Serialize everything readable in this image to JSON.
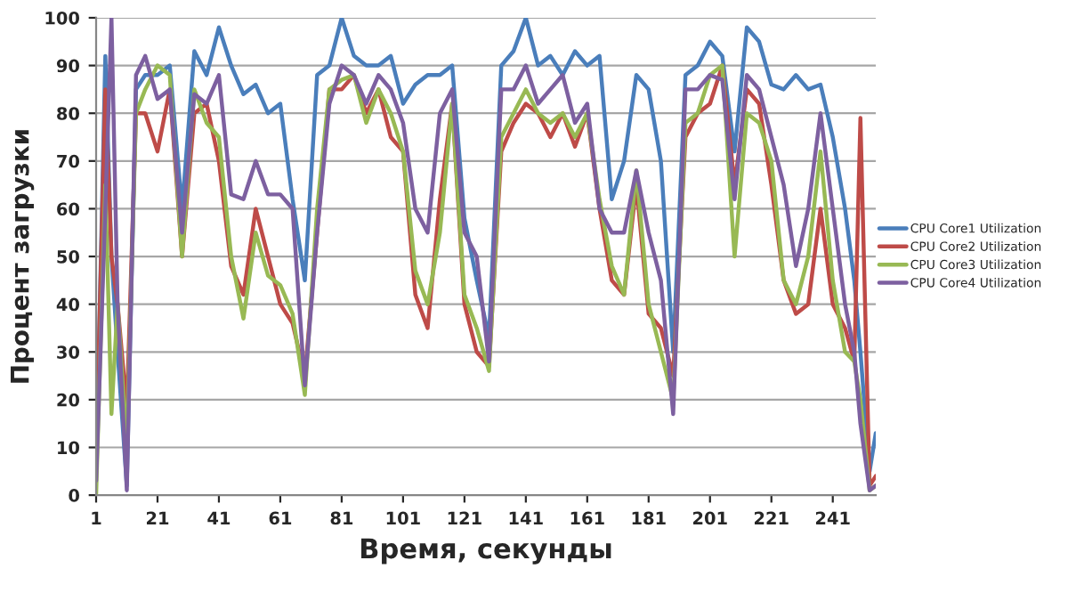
{
  "chart_data": {
    "type": "line",
    "xlabel": "Время, секунды",
    "ylabel": "Процент загрузки",
    "x": [
      1,
      4,
      6,
      8,
      11,
      14,
      17,
      21,
      25,
      29,
      33,
      37,
      41,
      45,
      49,
      53,
      57,
      61,
      65,
      69,
      73,
      77,
      81,
      85,
      89,
      93,
      97,
      101,
      105,
      109,
      113,
      117,
      121,
      125,
      129,
      133,
      137,
      141,
      145,
      149,
      153,
      157,
      161,
      165,
      169,
      173,
      177,
      181,
      185,
      189,
      193,
      197,
      201,
      205,
      209,
      213,
      217,
      221,
      225,
      229,
      233,
      237,
      241,
      245,
      248,
      250,
      253,
      255
    ],
    "series": [
      {
        "name": "CPU Core1 Utilization",
        "color": "#4a7ebb",
        "values": [
          5,
          92,
          50,
          30,
          2,
          85,
          88,
          88,
          90,
          60,
          93,
          88,
          98,
          90,
          84,
          86,
          80,
          82,
          62,
          45,
          88,
          90,
          100,
          92,
          90,
          90,
          92,
          82,
          86,
          88,
          88,
          90,
          58,
          45,
          33,
          90,
          93,
          100,
          90,
          92,
          88,
          93,
          90,
          92,
          62,
          70,
          88,
          85,
          70,
          30,
          88,
          90,
          95,
          92,
          72,
          98,
          95,
          86,
          85,
          88,
          85,
          86,
          75,
          60,
          45,
          30,
          5,
          13
        ]
      },
      {
        "name": "CPU Core2 Utilization",
        "color": "#be4b48",
        "values": [
          8,
          85,
          50,
          40,
          18,
          80,
          80,
          72,
          85,
          50,
          80,
          82,
          70,
          48,
          42,
          60,
          50,
          40,
          36,
          25,
          55,
          85,
          85,
          88,
          80,
          85,
          75,
          72,
          42,
          35,
          62,
          82,
          40,
          30,
          27,
          72,
          78,
          82,
          80,
          75,
          80,
          73,
          80,
          60,
          45,
          42,
          65,
          38,
          35,
          25,
          75,
          80,
          82,
          90,
          65,
          85,
          82,
          65,
          45,
          38,
          40,
          60,
          40,
          35,
          28,
          79,
          2,
          4
        ]
      },
      {
        "name": "CPU Core3 Utilization",
        "color": "#98b954",
        "values": [
          0,
          65,
          17,
          40,
          10,
          80,
          85,
          90,
          88,
          50,
          85,
          78,
          75,
          50,
          37,
          55,
          46,
          44,
          38,
          21,
          60,
          85,
          87,
          88,
          78,
          85,
          80,
          72,
          47,
          40,
          55,
          82,
          42,
          35,
          26,
          75,
          80,
          85,
          80,
          78,
          80,
          75,
          80,
          62,
          48,
          42,
          68,
          40,
          30,
          20,
          78,
          80,
          88,
          90,
          50,
          80,
          78,
          70,
          45,
          40,
          50,
          72,
          45,
          30,
          28,
          20,
          1,
          2
        ]
      },
      {
        "name": "CPU Core4 Utilization",
        "color": "#7d60a0",
        "values": [
          3,
          60,
          100,
          40,
          1,
          88,
          92,
          83,
          85,
          55,
          84,
          82,
          88,
          63,
          62,
          70,
          63,
          63,
          60,
          23,
          55,
          82,
          90,
          88,
          82,
          88,
          85,
          78,
          60,
          55,
          80,
          85,
          55,
          50,
          28,
          85,
          85,
          90,
          82,
          85,
          88,
          78,
          82,
          60,
          55,
          55,
          68,
          55,
          45,
          17,
          85,
          85,
          88,
          87,
          62,
          88,
          85,
          75,
          65,
          48,
          60,
          80,
          60,
          40,
          30,
          15,
          1,
          2
        ]
      }
    ],
    "xlim": [
      1,
      255
    ],
    "xticks": [
      1,
      21,
      41,
      61,
      81,
      101,
      121,
      141,
      161,
      181,
      201,
      221,
      241
    ],
    "ylim": [
      0,
      100
    ],
    "yticks": [
      0,
      10,
      20,
      30,
      40,
      50,
      60,
      70,
      80,
      90,
      100
    ],
    "grid": "y",
    "legend": "right",
    "marker": "none",
    "line_style": "solid"
  }
}
